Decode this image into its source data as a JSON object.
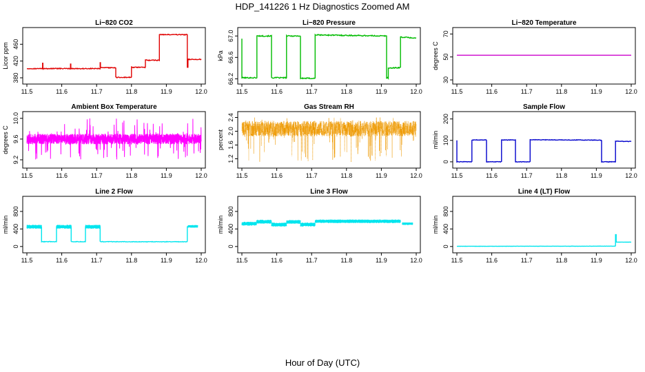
{
  "page": {
    "title": "HDP_141226  1 Hz Diagnostics Zoomed AM",
    "xlabel": "Hour of Day (UTC)"
  },
  "chart_data": [
    {
      "type": "line",
      "title": "Li−820 CO2",
      "ylabel": "Licor ppm",
      "color": "#e00000",
      "xlim": [
        11.5,
        12.0
      ],
      "ylim": [
        375,
        490
      ],
      "x_ticks": [
        "11.5",
        "11.6",
        "11.7",
        "11.8",
        "11.9",
        "12.0"
      ],
      "y_ticks": [
        380,
        420,
        460
      ],
      "y_tick_labels": [
        "380",
        "420",
        "460"
      ],
      "noise": 1,
      "segments": [
        {
          "x": [
            11.5,
            11.545
          ],
          "y": [
            402,
            402
          ]
        },
        {
          "x": [
            11.545,
            11.545
          ],
          "y": [
            402,
            415
          ]
        },
        {
          "x": [
            11.546,
            11.546
          ],
          "y": [
            415,
            402
          ]
        },
        {
          "x": [
            11.546,
            11.625
          ],
          "y": [
            402,
            402
          ]
        },
        {
          "x": [
            11.625,
            11.625
          ],
          "y": [
            402,
            413
          ]
        },
        {
          "x": [
            11.626,
            11.626
          ],
          "y": [
            413,
            402
          ]
        },
        {
          "x": [
            11.626,
            11.71
          ],
          "y": [
            402,
            402
          ]
        },
        {
          "x": [
            11.71,
            11.71
          ],
          "y": [
            402,
            416
          ]
        },
        {
          "x": [
            11.711,
            11.711
          ],
          "y": [
            416,
            404
          ]
        },
        {
          "x": [
            11.711,
            11.755
          ],
          "y": [
            404,
            404
          ]
        },
        {
          "x": [
            11.755,
            11.755
          ],
          "y": [
            404,
            381
          ]
        },
        {
          "x": [
            11.755,
            11.8
          ],
          "y": [
            381,
            381
          ]
        },
        {
          "x": [
            11.8,
            11.8
          ],
          "y": [
            381,
            405
          ]
        },
        {
          "x": [
            11.8,
            11.84
          ],
          "y": [
            405,
            405
          ]
        },
        {
          "x": [
            11.84,
            11.84
          ],
          "y": [
            405,
            422
          ]
        },
        {
          "x": [
            11.84,
            11.88
          ],
          "y": [
            422,
            422
          ]
        },
        {
          "x": [
            11.88,
            11.88
          ],
          "y": [
            422,
            483
          ]
        },
        {
          "x": [
            11.88,
            11.96
          ],
          "y": [
            483,
            483
          ]
        },
        {
          "x": [
            11.96,
            11.96
          ],
          "y": [
            483,
            405
          ]
        },
        {
          "x": [
            11.962,
            11.962
          ],
          "y": [
            405,
            424
          ]
        },
        {
          "x": [
            11.962,
            12.0
          ],
          "y": [
            424,
            424
          ]
        }
      ]
    },
    {
      "type": "line",
      "title": "Li−820 Pressure",
      "ylabel": "kPa",
      "color": "#00bb00",
      "xlim": [
        11.5,
        12.0
      ],
      "ylim": [
        66.18,
        67.08
      ],
      "x_ticks": [
        "11.5",
        "11.6",
        "11.7",
        "11.8",
        "11.9",
        "12.0"
      ],
      "y_ticks": [
        66.2,
        66.6,
        67.0
      ],
      "y_tick_labels": [
        "66.2",
        "66.6",
        "67.0"
      ],
      "noise": 0.01,
      "segments": [
        {
          "x": [
            11.5,
            11.5
          ],
          "y": [
            66.95,
            66.22
          ]
        },
        {
          "x": [
            11.5,
            11.543
          ],
          "y": [
            66.22,
            66.22
          ]
        },
        {
          "x": [
            11.543,
            11.543
          ],
          "y": [
            66.22,
            67.0
          ]
        },
        {
          "x": [
            11.543,
            11.585
          ],
          "y": [
            67.0,
            67.0
          ]
        },
        {
          "x": [
            11.585,
            11.585
          ],
          "y": [
            67.0,
            66.22
          ]
        },
        {
          "x": [
            11.585,
            11.628
          ],
          "y": [
            66.22,
            66.22
          ]
        },
        {
          "x": [
            11.628,
            11.628
          ],
          "y": [
            66.22,
            67.0
          ]
        },
        {
          "x": [
            11.628,
            11.668
          ],
          "y": [
            67.0,
            67.0
          ]
        },
        {
          "x": [
            11.668,
            11.668
          ],
          "y": [
            67.0,
            66.21
          ]
        },
        {
          "x": [
            11.668,
            11.71
          ],
          "y": [
            66.21,
            66.21
          ]
        },
        {
          "x": [
            11.71,
            11.71
          ],
          "y": [
            66.21,
            67.02
          ]
        },
        {
          "x": [
            11.71,
            11.915
          ],
          "y": [
            67.02,
            67.0
          ]
        },
        {
          "x": [
            11.915,
            11.915
          ],
          "y": [
            67.0,
            66.22
          ]
        },
        {
          "x": [
            11.915,
            11.92
          ],
          "y": [
            66.22,
            66.22
          ]
        },
        {
          "x": [
            11.92,
            11.92
          ],
          "y": [
            66.22,
            66.4
          ]
        },
        {
          "x": [
            11.92,
            11.955
          ],
          "y": [
            66.4,
            66.41
          ]
        },
        {
          "x": [
            11.955,
            11.955
          ],
          "y": [
            66.41,
            66.98
          ]
        },
        {
          "x": [
            11.955,
            12.0
          ],
          "y": [
            66.98,
            66.96
          ]
        }
      ]
    },
    {
      "type": "line",
      "title": "Li−820 Temperature",
      "ylabel": "degrees C",
      "color": "#cc00cc",
      "xlim": [
        11.5,
        12.0
      ],
      "ylim": [
        30,
        72
      ],
      "x_ticks": [
        "11.5",
        "11.6",
        "11.7",
        "11.8",
        "11.9",
        "12.0"
      ],
      "y_ticks": [
        30,
        50,
        70
      ],
      "y_tick_labels": [
        "30",
        "50",
        "70"
      ],
      "noise": 0,
      "segments": [
        {
          "x": [
            11.5,
            12.0
          ],
          "y": [
            51.5,
            51.5
          ]
        }
      ]
    },
    {
      "type": "line",
      "title": "Ambient Box Temperature",
      "ylabel": "degrees C",
      "color": "#ff00ff",
      "xlim": [
        11.5,
        12.0
      ],
      "ylim": [
        9.12,
        10.05
      ],
      "x_ticks": [
        "11.5",
        "11.6",
        "11.7",
        "11.8",
        "11.9",
        "12.0"
      ],
      "y_ticks": [
        9.2,
        9.6,
        10.0
      ],
      "y_tick_labels": [
        "9.2",
        "9.6",
        "10.0"
      ],
      "series": [
        {
          "x_range": [
            11.5,
            12.0
          ],
          "center": 9.6,
          "band": [
            9.5,
            9.7
          ],
          "spike_range": [
            9.2,
            10.0
          ],
          "n": 1800,
          "seed": 11
        }
      ]
    },
    {
      "type": "scatter",
      "title": "Gas Stream RH",
      "ylabel": "percent",
      "color": "#ee9900",
      "xlim": [
        11.5,
        12.0
      ],
      "ylim": [
        1.05,
        2.45
      ],
      "x_ticks": [
        "11.5",
        "11.6",
        "11.7",
        "11.8",
        "11.9",
        "12.0"
      ],
      "y_ticks": [
        1.2,
        1.6,
        2.0,
        2.4
      ],
      "y_tick_labels": [
        "1.2",
        "1.6",
        "2.0",
        "2.4"
      ],
      "series": [
        {
          "x_range": [
            11.5,
            12.0
          ],
          "center": 2.05,
          "band": [
            1.85,
            2.3
          ],
          "spike_range": [
            1.1,
            2.4
          ],
          "n": 2000,
          "seed": 23
        }
      ]
    },
    {
      "type": "line",
      "title": "Sample Flow",
      "ylabel": "ml/min",
      "color": "#0000cc",
      "xlim": [
        11.5,
        12.0
      ],
      "ylim": [
        -10,
        215
      ],
      "x_ticks": [
        "11.5",
        "11.6",
        "11.7",
        "11.8",
        "11.9",
        "12.0"
      ],
      "y_ticks": [
        0,
        100,
        200
      ],
      "y_tick_labels": [
        "0",
        "100",
        "200"
      ],
      "noise": 1.2,
      "segments": [
        {
          "x": [
            11.5,
            11.5
          ],
          "y": [
            100,
            0
          ]
        },
        {
          "x": [
            11.5,
            11.543
          ],
          "y": [
            0,
            0
          ]
        },
        {
          "x": [
            11.543,
            11.543
          ],
          "y": [
            0,
            102
          ]
        },
        {
          "x": [
            11.543,
            11.585
          ],
          "y": [
            102,
            102
          ]
        },
        {
          "x": [
            11.585,
            11.585
          ],
          "y": [
            102,
            0
          ]
        },
        {
          "x": [
            11.585,
            11.628
          ],
          "y": [
            0,
            0
          ]
        },
        {
          "x": [
            11.628,
            11.628
          ],
          "y": [
            0,
            102
          ]
        },
        {
          "x": [
            11.628,
            11.668
          ],
          "y": [
            102,
            102
          ]
        },
        {
          "x": [
            11.668,
            11.668
          ],
          "y": [
            102,
            0
          ]
        },
        {
          "x": [
            11.668,
            11.71
          ],
          "y": [
            0,
            0
          ]
        },
        {
          "x": [
            11.71,
            11.71
          ],
          "y": [
            0,
            103
          ]
        },
        {
          "x": [
            11.71,
            11.915
          ],
          "y": [
            103,
            101
          ]
        },
        {
          "x": [
            11.915,
            11.915
          ],
          "y": [
            101,
            0
          ]
        },
        {
          "x": [
            11.915,
            11.955
          ],
          "y": [
            0,
            0
          ]
        },
        {
          "x": [
            11.955,
            11.955
          ],
          "y": [
            0,
            96
          ]
        },
        {
          "x": [
            11.955,
            12.0
          ],
          "y": [
            96,
            95
          ]
        }
      ]
    },
    {
      "type": "line",
      "title": "Line 2 Flow",
      "ylabel": "ml/min",
      "color": "#00e5ee",
      "xlim": [
        11.5,
        12.0
      ],
      "ylim": [
        -50,
        1050
      ],
      "x_ticks": [
        "11.5",
        "11.6",
        "11.7",
        "11.8",
        "11.9",
        "12.0"
      ],
      "y_ticks": [
        0,
        400,
        800
      ],
      "y_tick_labels": [
        "0",
        "400",
        "800"
      ],
      "noise": 6,
      "thick_segments": [
        {
          "x": [
            11.5,
            11.542
          ],
          "center": 450,
          "half": 45
        },
        {
          "x": [
            11.585,
            11.627
          ],
          "center": 450,
          "half": 45
        },
        {
          "x": [
            11.668,
            11.71
          ],
          "center": 450,
          "half": 45
        },
        {
          "x": [
            11.962,
            11.99
          ],
          "center": 460,
          "half": 30
        }
      ],
      "segments": [
        {
          "x": [
            11.542,
            11.542
          ],
          "y": [
            450,
            110
          ]
        },
        {
          "x": [
            11.542,
            11.585
          ],
          "y": [
            110,
            110
          ]
        },
        {
          "x": [
            11.585,
            11.585
          ],
          "y": [
            110,
            450
          ]
        },
        {
          "x": [
            11.627,
            11.627
          ],
          "y": [
            450,
            110
          ]
        },
        {
          "x": [
            11.627,
            11.668
          ],
          "y": [
            110,
            110
          ]
        },
        {
          "x": [
            11.668,
            11.668
          ],
          "y": [
            110,
            450
          ]
        },
        {
          "x": [
            11.71,
            11.71
          ],
          "y": [
            450,
            110
          ]
        },
        {
          "x": [
            11.71,
            11.96
          ],
          "y": [
            110,
            108
          ]
        },
        {
          "x": [
            11.96,
            11.96
          ],
          "y": [
            108,
            460
          ]
        }
      ]
    },
    {
      "type": "line",
      "title": "Line 3 Flow",
      "ylabel": "ml/min",
      "color": "#00e5ee",
      "xlim": [
        11.5,
        12.0
      ],
      "ylim": [
        -50,
        1050
      ],
      "x_ticks": [
        "11.5",
        "11.6",
        "11.7",
        "11.8",
        "11.9",
        "12.0"
      ],
      "y_ticks": [
        0,
        400,
        800
      ],
      "y_tick_labels": [
        "0",
        "400",
        "800"
      ],
      "noise": 6,
      "thick_segments": [
        {
          "x": [
            11.5,
            11.542
          ],
          "center": 520,
          "half": 45
        },
        {
          "x": [
            11.542,
            11.585
          ],
          "center": 565,
          "half": 45
        },
        {
          "x": [
            11.585,
            11.628
          ],
          "center": 500,
          "half": 45
        },
        {
          "x": [
            11.628,
            11.668
          ],
          "center": 560,
          "half": 45
        },
        {
          "x": [
            11.668,
            11.71
          ],
          "center": 500,
          "half": 45
        },
        {
          "x": [
            11.71,
            11.955
          ],
          "center": 575,
          "half": 40
        },
        {
          "x": [
            11.96,
            11.99
          ],
          "center": 520,
          "half": 30
        }
      ],
      "segments": []
    },
    {
      "type": "line",
      "title": "Line 4 (LT) Flow",
      "ylabel": "ml/min",
      "color": "#00e5ee",
      "xlim": [
        11.5,
        12.0
      ],
      "ylim": [
        -50,
        1050
      ],
      "x_ticks": [
        "11.5",
        "11.6",
        "11.7",
        "11.8",
        "11.9",
        "12.0"
      ],
      "y_ticks": [
        0,
        400,
        800
      ],
      "y_tick_labels": [
        "0",
        "400",
        "800"
      ],
      "noise": 2,
      "segments": [
        {
          "x": [
            11.5,
            11.955
          ],
          "y": [
            5,
            8
          ]
        },
        {
          "x": [
            11.955,
            11.955
          ],
          "y": [
            8,
            270
          ]
        },
        {
          "x": [
            11.957,
            11.957
          ],
          "y": [
            270,
            100
          ]
        },
        {
          "x": [
            11.957,
            12.0
          ],
          "y": [
            100,
            100
          ]
        }
      ]
    }
  ]
}
